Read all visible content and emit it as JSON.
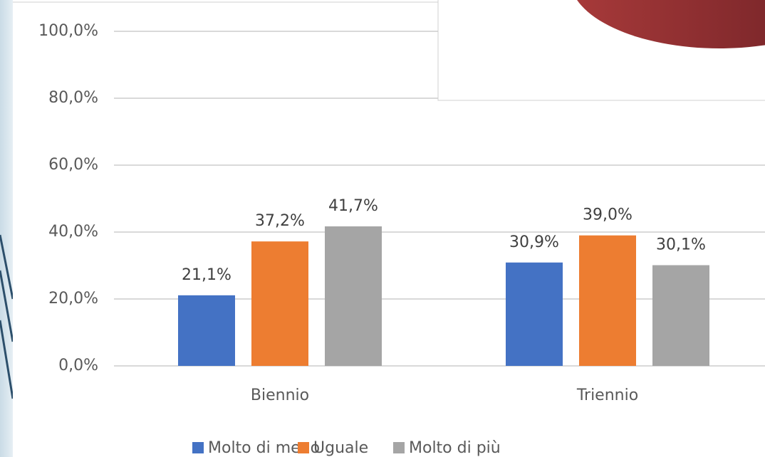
{
  "chart_data": {
    "type": "bar",
    "categories": [
      "Biennio",
      "Triennio"
    ],
    "series": [
      {
        "name": "Molto di meno",
        "color": "#4472c4",
        "values": [
          21.1,
          30.9
        ],
        "value_labels": [
          "21,1%",
          "30,9%"
        ]
      },
      {
        "name": "Uguale",
        "color": "#ed7d31",
        "values": [
          37.2,
          39.0
        ],
        "value_labels": [
          "37,2%",
          "39,0%"
        ]
      },
      {
        "name": "Molto di più",
        "color": "#a5a5a5",
        "values": [
          41.7,
          30.1
        ],
        "value_labels": [
          "41,7%",
          "30,1%"
        ]
      }
    ],
    "ylim": [
      0,
      100
    ],
    "yticks": [
      {
        "value": 0,
        "label": "0,0%"
      },
      {
        "value": 20,
        "label": "20,0%"
      },
      {
        "value": 40,
        "label": "40,0%"
      },
      {
        "value": 60,
        "label": "60,0%"
      },
      {
        "value": 80,
        "label": "80,0%"
      },
      {
        "value": 100,
        "label": "100,0%"
      }
    ],
    "grid": true,
    "legend": "bottom"
  }
}
